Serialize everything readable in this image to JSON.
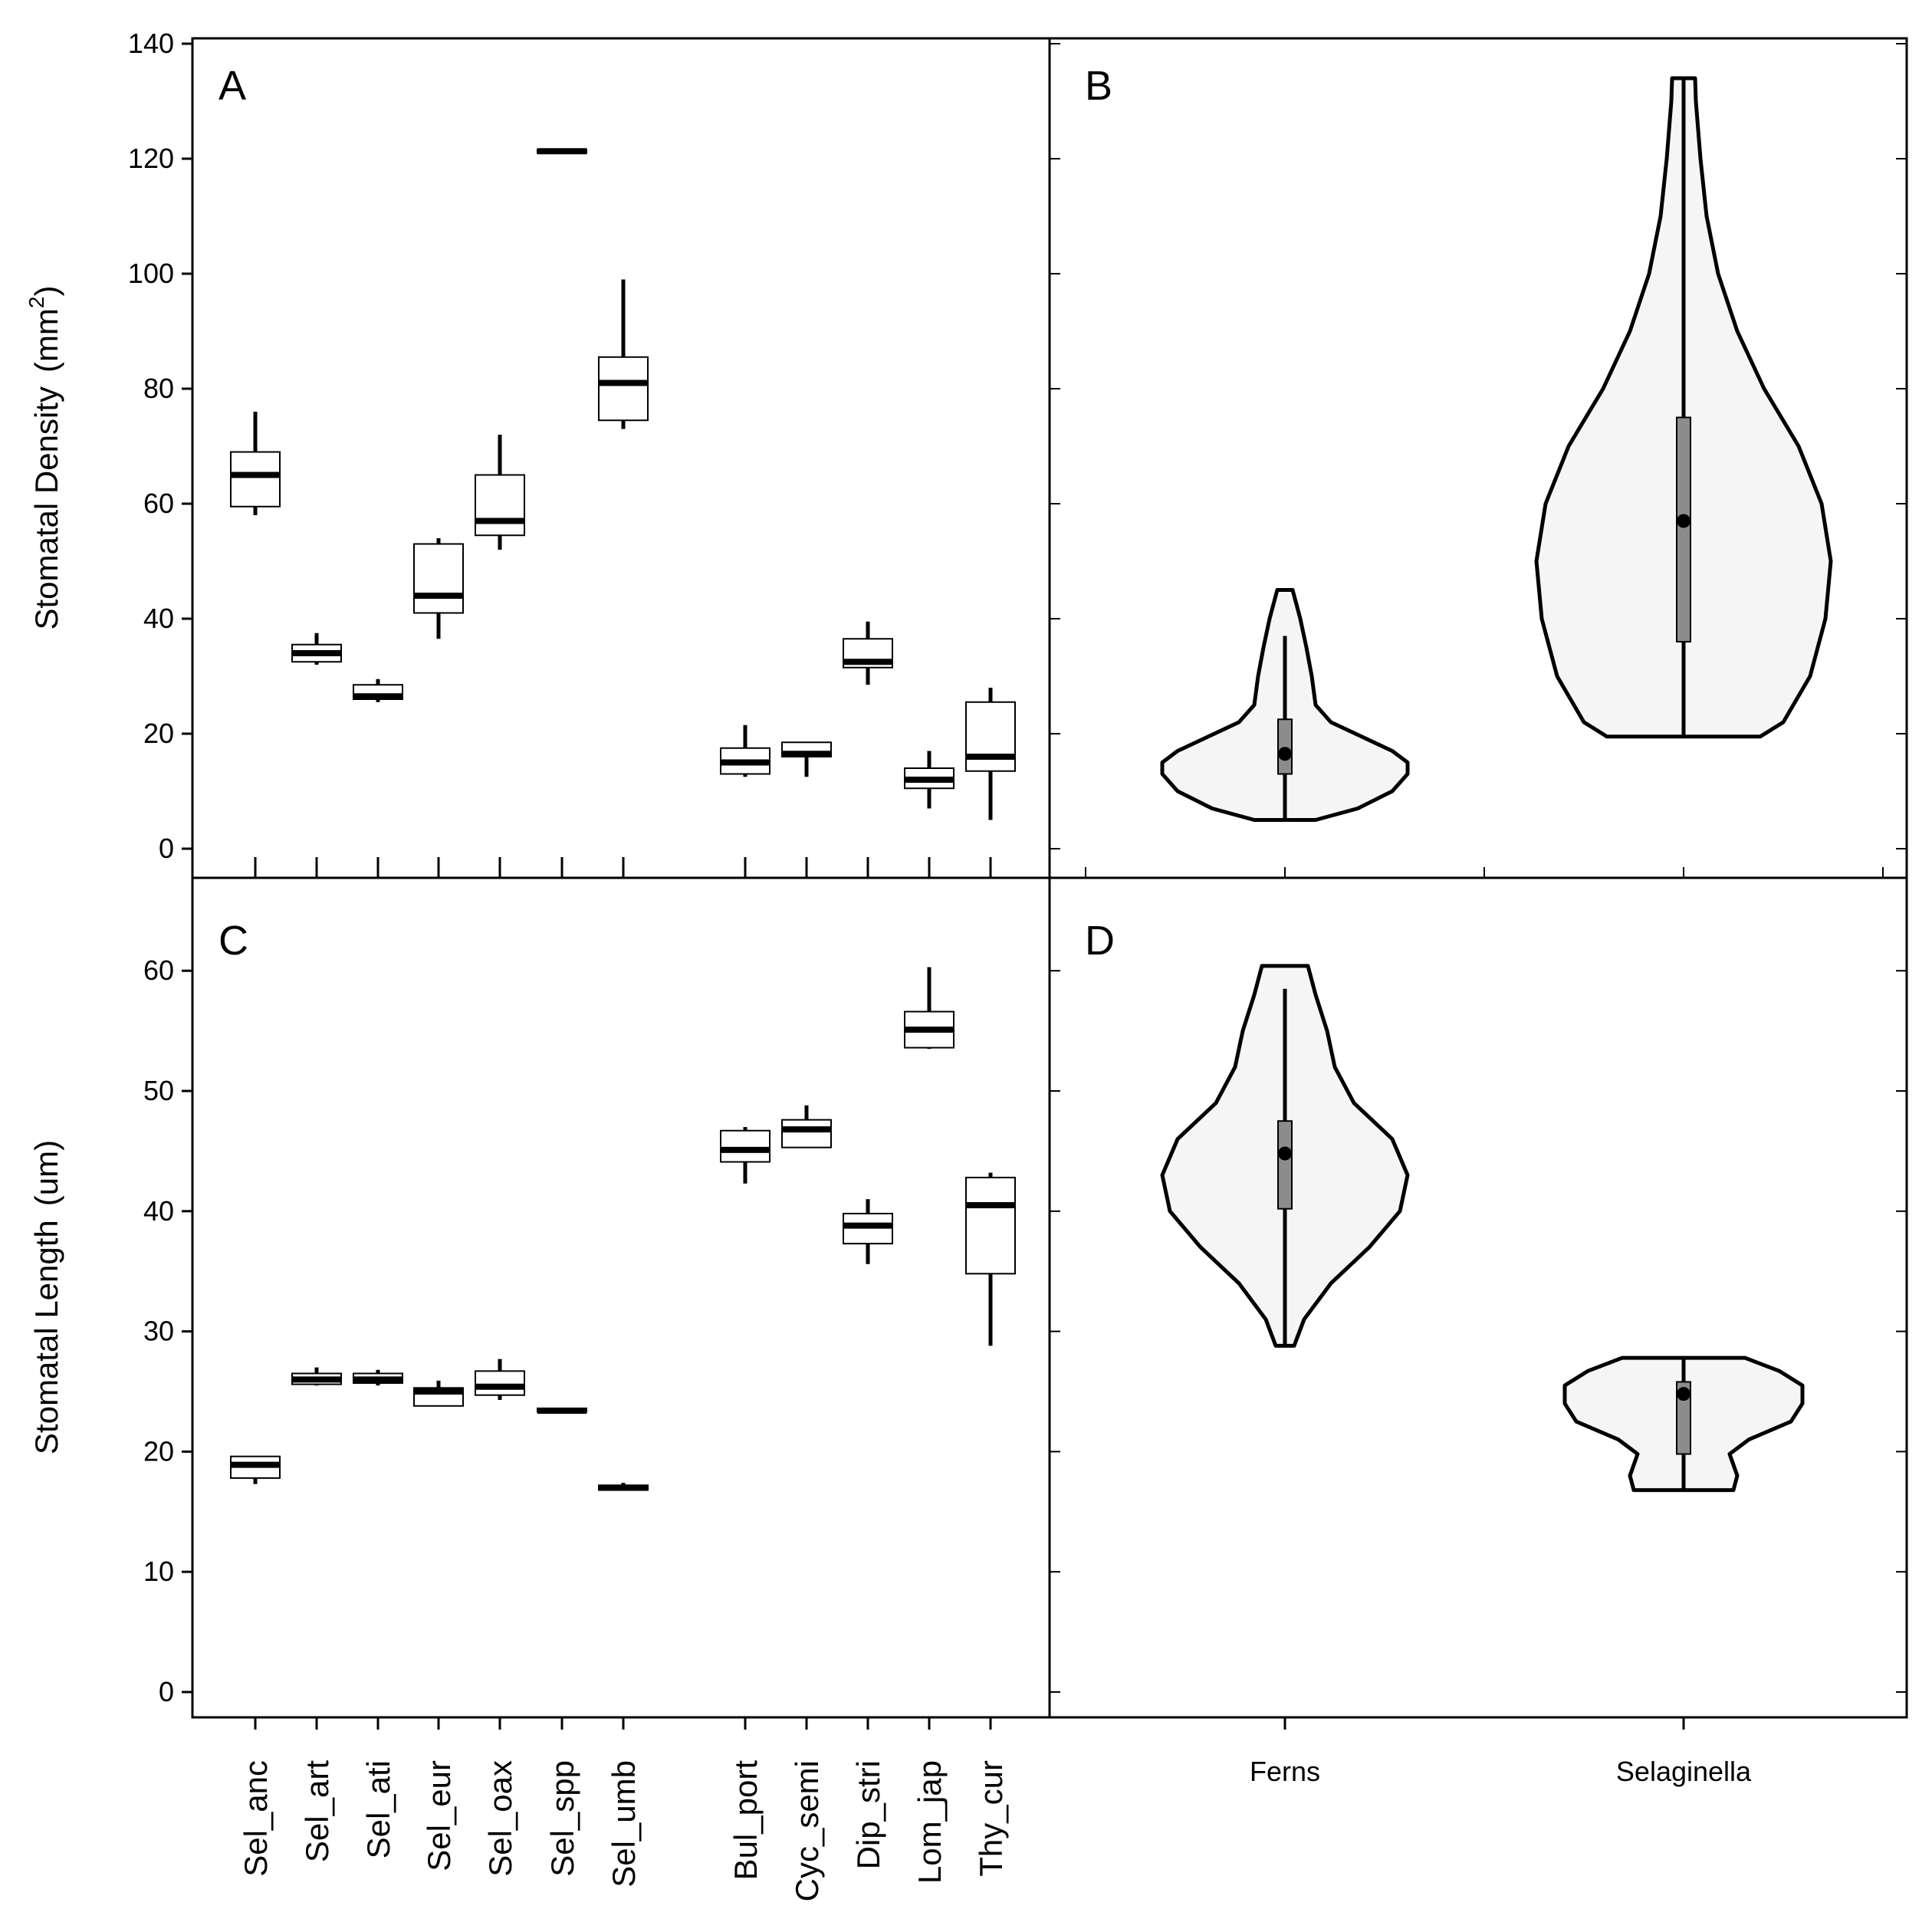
{
  "chart_data": [
    {
      "panel": "A",
      "type": "box",
      "ylabel": "Stomatal Density",
      "ylabel_unit": "(mm",
      "ylabel_unit_sup": "2",
      "ylabel_unit_close": ")",
      "ylim": [
        0,
        140
      ],
      "yticks": [
        0,
        20,
        40,
        60,
        80,
        100,
        120,
        140
      ],
      "categories": [
        "Sel_anc",
        "Sel_art",
        "Sel_ati",
        "Sel_eur",
        "Sel_oax",
        "Sel_spp",
        "Sel_umb",
        "Bul_port",
        "Cyc_semi",
        "Dip_stri",
        "Lom_jap",
        "Thy_cur"
      ],
      "boxes": [
        {
          "min": 58,
          "q1": 59.5,
          "median": 65,
          "q3": 69,
          "max": 76
        },
        {
          "min": 32,
          "q1": 32.5,
          "median": 34,
          "q3": 35.5,
          "max": 37.5
        },
        {
          "min": 25.5,
          "q1": 26,
          "median": 26.5,
          "q3": 28.5,
          "max": 29.5
        },
        {
          "min": 36.5,
          "q1": 41,
          "median": 44,
          "q3": 53,
          "max": 54
        },
        {
          "min": 52,
          "q1": 54.5,
          "median": 57,
          "q3": 65,
          "max": 72
        },
        {
          "min": 121,
          "q1": 121,
          "median": 121.3,
          "q3": 121.6,
          "max": 121.6
        },
        {
          "min": 73,
          "q1": 74.5,
          "median": 81,
          "q3": 85.5,
          "max": 99
        },
        {
          "min": 12.5,
          "q1": 13,
          "median": 15,
          "q3": 17.5,
          "max": 21.5
        },
        {
          "min": 12.5,
          "q1": 16,
          "median": 16.5,
          "q3": 18.5,
          "max": 18.5
        },
        {
          "min": 28.5,
          "q1": 31.5,
          "median": 32.5,
          "q3": 36.5,
          "max": 39.5
        },
        {
          "min": 7,
          "q1": 10.5,
          "median": 12,
          "q3": 14,
          "max": 17
        },
        {
          "min": 5,
          "q1": 13.5,
          "median": 16,
          "q3": 25.5,
          "max": 28
        }
      ]
    },
    {
      "panel": "B",
      "type": "violin",
      "ylim": [
        0,
        140
      ],
      "categories": [
        "Ferns",
        "Selaginella"
      ],
      "violins": [
        {
          "min": 5,
          "q1": 13,
          "median": 16.5,
          "q3": 22.5,
          "max": 37,
          "density_top": 45
        },
        {
          "min": 19.5,
          "q1": 36,
          "median": 57,
          "q3": 75,
          "max": 134,
          "density_top": 134
        }
      ]
    },
    {
      "panel": "C",
      "type": "box",
      "ylabel": "Stomatal Length",
      "ylabel_unit": "(um)",
      "ylim": [
        0,
        65
      ],
      "yticks": [
        0,
        10,
        20,
        30,
        40,
        50,
        60
      ],
      "categories": [
        "Sel_anc",
        "Sel_art",
        "Sel_ati",
        "Sel_eur",
        "Sel_oax",
        "Sel_spp",
        "Sel_umb",
        "Bul_port",
        "Cyc_semi",
        "Dip_stri",
        "Lom_jap",
        "Thy_cur"
      ],
      "boxes": [
        {
          "min": 17.3,
          "q1": 17.8,
          "median": 18.9,
          "q3": 19.6,
          "max": 19.6
        },
        {
          "min": 25.5,
          "q1": 25.6,
          "median": 26,
          "q3": 26.5,
          "max": 27
        },
        {
          "min": 25.5,
          "q1": 25.7,
          "median": 26,
          "q3": 26.5,
          "max": 26.8
        },
        {
          "min": 23.8,
          "q1": 23.8,
          "median": 25,
          "q3": 25.3,
          "max": 25.9
        },
        {
          "min": 24.3,
          "q1": 24.7,
          "median": 25.4,
          "q3": 26.7,
          "max": 27.7
        },
        {
          "min": 23.3,
          "q1": 23.3,
          "median": 23.4,
          "q3": 23.6,
          "max": 23.6
        },
        {
          "min": 16.8,
          "q1": 16.8,
          "median": 17,
          "q3": 17.2,
          "max": 17.4
        },
        {
          "min": 42.3,
          "q1": 44.1,
          "median": 45.1,
          "q3": 46.7,
          "max": 47
        },
        {
          "min": 45.3,
          "q1": 45.3,
          "median": 46.8,
          "q3": 47.6,
          "max": 48.8
        },
        {
          "min": 35.6,
          "q1": 37.3,
          "median": 38.8,
          "q3": 39.8,
          "max": 41
        },
        {
          "min": 53.5,
          "q1": 53.6,
          "median": 55.1,
          "q3": 56.6,
          "max": 60.3
        },
        {
          "min": 28.8,
          "q1": 34.8,
          "median": 40.5,
          "q3": 42.8,
          "max": 43.2
        }
      ]
    },
    {
      "panel": "D",
      "type": "violin",
      "ylim": [
        0,
        65
      ],
      "categories": [
        "Ferns",
        "Selaginella"
      ],
      "violins": [
        {
          "min": 28.8,
          "q1": 40.2,
          "median": 44.8,
          "q3": 47.5,
          "max": 58.5,
          "density_top": 60.4
        },
        {
          "min": 16.8,
          "q1": 19.8,
          "median": 24.8,
          "q3": 25.8,
          "max": 27.8,
          "density_top": 27.8
        }
      ]
    }
  ],
  "colors": {
    "axis": "#000000",
    "violin_fill": "#f5f5f5",
    "inner_box": "#8c8c8c",
    "box_fill": "#ffffff"
  }
}
